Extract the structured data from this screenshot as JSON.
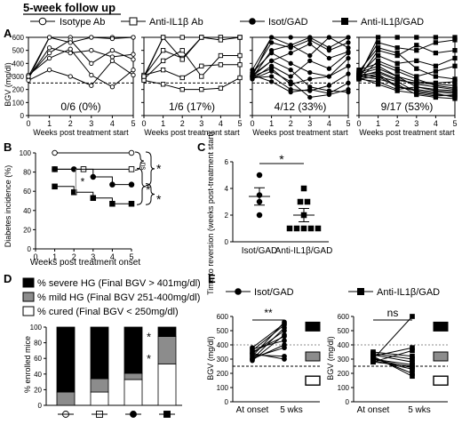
{
  "header": {
    "title": "5-week follow up"
  },
  "panel_labels": {
    "a": "A",
    "b": "B",
    "c": "C",
    "d": "D",
    "e": "E"
  },
  "legend_a": [
    "Isotype Ab",
    "Anti-IL1β Ab",
    "Isot/GAD",
    "Anti-IL1β/GAD"
  ],
  "chart_data": [
    {
      "id": "A1",
      "type": "line",
      "title": "Isotype Ab",
      "marker": "open-circle",
      "xlabel": "Weeks post treatment start",
      "ylabel": "BGV (mg/dl)",
      "xlim": [
        0,
        5
      ],
      "ylim": [
        0,
        600
      ],
      "xticks": [
        "0",
        "1",
        "2",
        "3",
        "4",
        "5"
      ],
      "yticks": [
        "0",
        "100",
        "200",
        "300",
        "400",
        "500",
        "600"
      ],
      "threshold": 250,
      "annotation": "0/6 (0%)",
      "x": [
        0,
        1,
        2,
        3,
        4,
        5
      ],
      "series": [
        {
          "values": [
            280,
            600,
            600,
            600,
            600,
            600
          ]
        },
        {
          "values": [
            290,
            520,
            480,
            500,
            450,
            470
          ]
        },
        {
          "values": [
            300,
            480,
            580,
            400,
            500,
            430
          ]
        },
        {
          "values": [
            310,
            440,
            510,
            310,
            220,
            350
          ]
        },
        {
          "values": [
            270,
            350,
            300,
            230,
            420,
            310
          ]
        },
        {
          "values": [
            300,
            600,
            560,
            600,
            590,
            600
          ]
        }
      ]
    },
    {
      "id": "A2",
      "type": "line",
      "title": "Anti-IL1β Ab",
      "marker": "open-square",
      "xlabel": "Weeks post treatment start",
      "ylabel": "",
      "xlim": [
        0,
        5
      ],
      "ylim": [
        0,
        600
      ],
      "threshold": 250,
      "annotation": "1/6 (17%)",
      "x": [
        0,
        1,
        2,
        3,
        4,
        5
      ],
      "series": [
        {
          "values": [
            290,
            600,
            600,
            600,
            600,
            600
          ]
        },
        {
          "values": [
            300,
            500,
            440,
            600,
            600,
            600
          ]
        },
        {
          "values": [
            280,
            420,
            500,
            300,
            460,
            460
          ]
        },
        {
          "values": [
            310,
            350,
            290,
            380,
            390,
            390
          ]
        },
        {
          "values": [
            270,
            240,
            200,
            200,
            210,
            290
          ]
        },
        {
          "values": [
            300,
            600,
            430,
            600,
            580,
            600
          ]
        }
      ]
    },
    {
      "id": "A3",
      "type": "line",
      "title": "Isot/GAD",
      "marker": "filled-circle",
      "xlabel": "Weeks post treatment start",
      "ylabel": "",
      "xlim": [
        0,
        5
      ],
      "ylim": [
        0,
        600
      ],
      "threshold": 250,
      "annotation": "4/12 (33%)",
      "x": [
        0,
        1,
        2,
        3,
        4,
        5
      ],
      "series": [
        {
          "values": [
            300,
            600,
            600,
            600,
            600,
            600
          ]
        },
        {
          "values": [
            320,
            560,
            520,
            580,
            500,
            560
          ]
        },
        {
          "values": [
            290,
            500,
            540,
            460,
            600,
            520
          ]
        },
        {
          "values": [
            310,
            420,
            480,
            550,
            440,
            490
          ]
        },
        {
          "values": [
            280,
            380,
            300,
            420,
            360,
            480
          ]
        },
        {
          "values": [
            330,
            480,
            400,
            330,
            300,
            380
          ]
        },
        {
          "values": [
            300,
            360,
            240,
            280,
            300,
            440
          ]
        },
        {
          "values": [
            290,
            300,
            200,
            190,
            230,
            320
          ]
        },
        {
          "values": [
            310,
            260,
            180,
            200,
            170,
            250
          ]
        },
        {
          "values": [
            280,
            340,
            260,
            140,
            160,
            200
          ]
        },
        {
          "values": [
            350,
            600,
            540,
            600,
            520,
            600
          ]
        },
        {
          "values": [
            300,
            420,
            350,
            220,
            190,
            180
          ]
        }
      ]
    },
    {
      "id": "A4",
      "type": "line",
      "title": "Anti-IL1β/GAD",
      "marker": "filled-square",
      "xlabel": "Weeks post treatment start",
      "ylabel": "",
      "xlim": [
        0,
        5
      ],
      "ylim": [
        0,
        600
      ],
      "threshold": 250,
      "annotation": "9/17 (53%)",
      "x": [
        0,
        1,
        2,
        3,
        4,
        5
      ],
      "series": [
        {
          "values": [
            300,
            600,
            600,
            600,
            600,
            600
          ]
        },
        {
          "values": [
            320,
            560,
            520,
            500,
            560,
            580
          ]
        },
        {
          "values": [
            290,
            500,
            460,
            540,
            480,
            500
          ]
        },
        {
          "values": [
            310,
            460,
            400,
            420,
            380,
            440
          ]
        },
        {
          "values": [
            280,
            420,
            360,
            300,
            340,
            380
          ]
        },
        {
          "values": [
            330,
            380,
            300,
            260,
            250,
            260
          ]
        },
        {
          "values": [
            300,
            340,
            280,
            240,
            220,
            200
          ]
        },
        {
          "values": [
            290,
            320,
            220,
            200,
            180,
            170
          ]
        },
        {
          "values": [
            310,
            300,
            260,
            180,
            160,
            150
          ]
        },
        {
          "values": [
            280,
            260,
            200,
            220,
            190,
            180
          ]
        },
        {
          "values": [
            350,
            400,
            340,
            280,
            230,
            210
          ]
        },
        {
          "values": [
            300,
            280,
            240,
            160,
            140,
            130
          ]
        },
        {
          "values": [
            320,
            360,
            300,
            220,
            200,
            190
          ]
        },
        {
          "values": [
            290,
            240,
            190,
            170,
            150,
            160
          ]
        },
        {
          "values": [
            310,
            330,
            270,
            250,
            240,
            230
          ]
        },
        {
          "values": [
            280,
            300,
            220,
            190,
            170,
            140
          ]
        },
        {
          "values": [
            340,
            520,
            480,
            360,
            300,
            280
          ]
        }
      ]
    },
    {
      "id": "B",
      "type": "line",
      "xlabel": "Weeks post treatment onset",
      "ylabel": "Diabetes incidence (%)",
      "xlim": [
        0,
        5
      ],
      "ylim": [
        0,
        100
      ],
      "xticks": [
        "0",
        "1",
        "2",
        "3",
        "4",
        "5"
      ],
      "yticks": [
        "0",
        "20",
        "40",
        "60",
        "80",
        "100"
      ],
      "significance": [
        "ns",
        "*",
        "*",
        "*"
      ],
      "series": [
        {
          "marker": "open-circle",
          "x": [
            1,
            5
          ],
          "values": [
            100,
            100
          ]
        },
        {
          "marker": "open-square",
          "x": [
            1,
            2.5,
            5
          ],
          "values": [
            83,
            83,
            83
          ]
        },
        {
          "marker": "filled-circle",
          "x": [
            1,
            2,
            3,
            4,
            5
          ],
          "values": [
            83,
            83,
            75,
            67,
            67
          ]
        },
        {
          "marker": "filled-square",
          "x": [
            1,
            2,
            3,
            4,
            5
          ],
          "values": [
            65,
            59,
            53,
            47,
            47
          ]
        }
      ]
    },
    {
      "id": "C",
      "type": "scatter",
      "ylabel": "Time to reversion (weeks post-treatment start)",
      "categories": [
        "Isot/GAD",
        "Anti-IL1β/GAD"
      ],
      "ylim": [
        0,
        6
      ],
      "yticks": [
        "0",
        "2",
        "4",
        "6"
      ],
      "significance": "*",
      "series": [
        {
          "name": "Isot/GAD",
          "marker": "filled-circle",
          "values": [
            5,
            3.5,
            3,
            2
          ],
          "mean": 3.4,
          "sem": 0.65
        },
        {
          "name": "Anti-IL1β/GAD",
          "marker": "filled-square",
          "values": [
            4,
            3,
            3,
            2,
            1,
            1,
            1,
            1,
            1
          ],
          "mean": 2.0,
          "sem": 0.5
        }
      ]
    },
    {
      "id": "D",
      "type": "bar",
      "ylabel": "% enrolled mice",
      "ylim": [
        0,
        100
      ],
      "yticks": [
        "0",
        "20",
        "40",
        "60",
        "80",
        "100"
      ],
      "category_markers": [
        "open-circle",
        "open-square",
        "filled-circle",
        "filled-square"
      ],
      "legend": [
        "% severe HG (Final BGV > 401mg/dl)",
        "% mild HG (Final BGV 251-400mg/dl)",
        "% cured (Final BGV < 250mg/dl)"
      ],
      "colors": {
        "severe": "#000000",
        "mild": "#8c8c8c",
        "cured": "#ffffff"
      },
      "stacks": [
        {
          "cured": 0,
          "mild": 17,
          "severe": 83
        },
        {
          "cured": 17,
          "mild": 17,
          "severe": 66
        },
        {
          "cured": 33,
          "mild": 8,
          "severe": 59
        },
        {
          "cured": 53,
          "mild": 35,
          "severe": 12
        }
      ],
      "significance": [
        "*",
        "*"
      ]
    },
    {
      "id": "E1",
      "type": "line",
      "title": "Isot/GAD",
      "marker": "filled-circle",
      "ylabel": "BGV (mg/dl)",
      "ylim": [
        0,
        600
      ],
      "yticks": [
        "0",
        "100",
        "200",
        "300",
        "400",
        "500",
        "600"
      ],
      "categories": [
        "At onset",
        "5 wks"
      ],
      "significance": "**",
      "series": [
        {
          "values": [
            300,
            520
          ]
        },
        {
          "values": [
            320,
            560
          ]
        },
        {
          "values": [
            360,
            540
          ]
        },
        {
          "values": [
            340,
            500
          ]
        },
        {
          "values": [
            290,
            470
          ]
        },
        {
          "values": [
            380,
            550
          ]
        },
        {
          "values": [
            310,
            380
          ]
        },
        {
          "values": [
            350,
            460
          ]
        },
        {
          "values": [
            300,
            400
          ]
        },
        {
          "values": [
            330,
            320
          ]
        },
        {
          "values": [
            370,
            430
          ]
        },
        {
          "values": [
            340,
            300
          ]
        }
      ]
    },
    {
      "id": "E2",
      "type": "line",
      "title": "Anti-IL1β/GAD",
      "marker": "filled-square",
      "ylabel": "BGV (mg/dl)",
      "ylim": [
        0,
        600
      ],
      "yticks": [
        "0",
        "100",
        "200",
        "300",
        "400",
        "500",
        "600"
      ],
      "categories": [
        "At onset",
        "5 wks"
      ],
      "significance": "ns",
      "series": [
        {
          "values": [
            300,
            600
          ]
        },
        {
          "values": [
            320,
            380
          ]
        },
        {
          "values": [
            280,
            360
          ]
        },
        {
          "values": [
            340,
            300
          ]
        },
        {
          "values": [
            300,
            240
          ]
        },
        {
          "values": [
            310,
            200
          ]
        },
        {
          "values": [
            330,
            280
          ]
        },
        {
          "values": [
            290,
            230
          ]
        },
        {
          "values": [
            350,
            320
          ]
        },
        {
          "values": [
            300,
            260
          ]
        },
        {
          "values": [
            320,
            180
          ]
        },
        {
          "values": [
            280,
            250
          ]
        }
      ]
    }
  ]
}
